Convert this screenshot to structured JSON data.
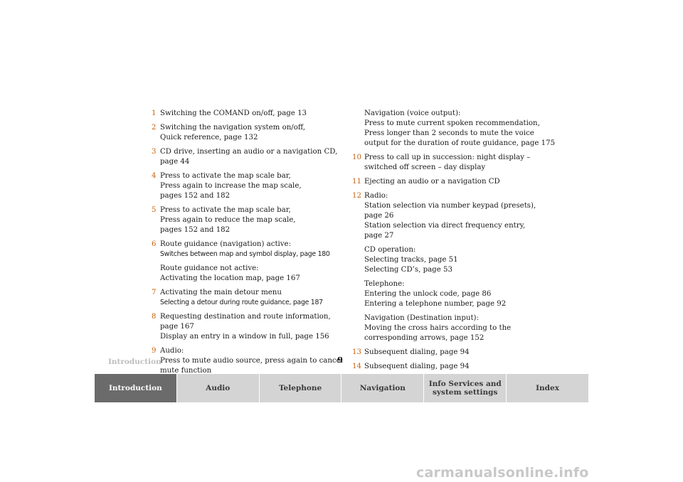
{
  "left_items": [
    {
      "num": "1",
      "lines": [
        "Switching the COMAND on/off, page 13"
      ]
    },
    {
      "num": "2",
      "lines": [
        "Switching the navigation system on/off,",
        "Quick reference, page 132"
      ]
    },
    {
      "num": "3",
      "lines": [
        "CD drive, inserting an audio or a navigation CD,",
        "page 44"
      ]
    },
    {
      "num": "4",
      "lines": [
        "Press to activate the map scale bar,",
        "Press again to increase the map scale,",
        "pages 152 and 182"
      ]
    },
    {
      "num": "5",
      "lines": [
        "Press to activate the map scale bar,",
        "Press again to reduce the map scale,",
        "pages 152 and 182"
      ]
    },
    {
      "num": "6",
      "lines": [
        "Route guidance (navigation) active:",
        "Switches between map and symbol display, page 180"
      ],
      "extra": [
        "Route guidance not active:",
        "Activating the location map, page 167"
      ]
    },
    {
      "num": "7",
      "lines": [
        "Activating the main detour menu",
        "Selecting a detour during route guidance, page 187"
      ]
    },
    {
      "num": "8",
      "lines": [
        "Requesting destination and route information,",
        "page 167",
        "Display an entry in a window in full, page 156"
      ]
    },
    {
      "num": "9",
      "lines": [
        "Audio:",
        "Press to mute audio source, press again to cancel",
        "mute function"
      ]
    }
  ],
  "right_intro": [
    "Navigation (voice output):",
    "Press to mute current spoken recommendation,",
    "Press longer than 2 seconds to mute the voice",
    "output for the duration of route guidance, page 175"
  ],
  "right_items": [
    {
      "num": "10",
      "lines": [
        "Press to call up in succession: night display –",
        "switched off screen – day display"
      ]
    },
    {
      "num": "11",
      "lines": [
        "Ejecting an audio or a navigation CD"
      ]
    },
    {
      "num": "12",
      "lines": [
        "Radio:",
        "Station selection via number keypad (presets),",
        "page 26",
        "Station selection via direct frequency entry,",
        "page 27"
      ],
      "paras": [
        [
          "CD operation:",
          "Selecting tracks, page 51",
          "Selecting CD’s, page 53"
        ],
        [
          "Telephone:",
          "Entering the unlock code, page 86",
          "Entering a telephone number, page 92"
        ],
        [
          "Navigation (Destination input):",
          "Moving the cross hairs according to the",
          "corresponding arrows, page 152"
        ]
      ]
    },
    {
      "num": "13",
      "lines": [
        "Subsequent dialing, page 94"
      ]
    },
    {
      "num": "14",
      "lines": [
        "Subsequent dialing, page 94"
      ]
    }
  ],
  "footer": {
    "section": "Introduction",
    "page": "9"
  },
  "tabs": [
    {
      "label": "Introduction",
      "active": true
    },
    {
      "label": "Audio",
      "active": false
    },
    {
      "label": "Telephone",
      "active": false
    },
    {
      "label": "Navigation",
      "active": false
    },
    {
      "label": "Info Services and\nsystem settings",
      "active": false
    },
    {
      "label": "Index",
      "active": false
    }
  ],
  "watermark": "carmanualsonline.info",
  "colors": {
    "accent_number": "#c8620c",
    "tab_bg": "#d4d4d4",
    "tab_active_bg": "#6b6b6b"
  }
}
